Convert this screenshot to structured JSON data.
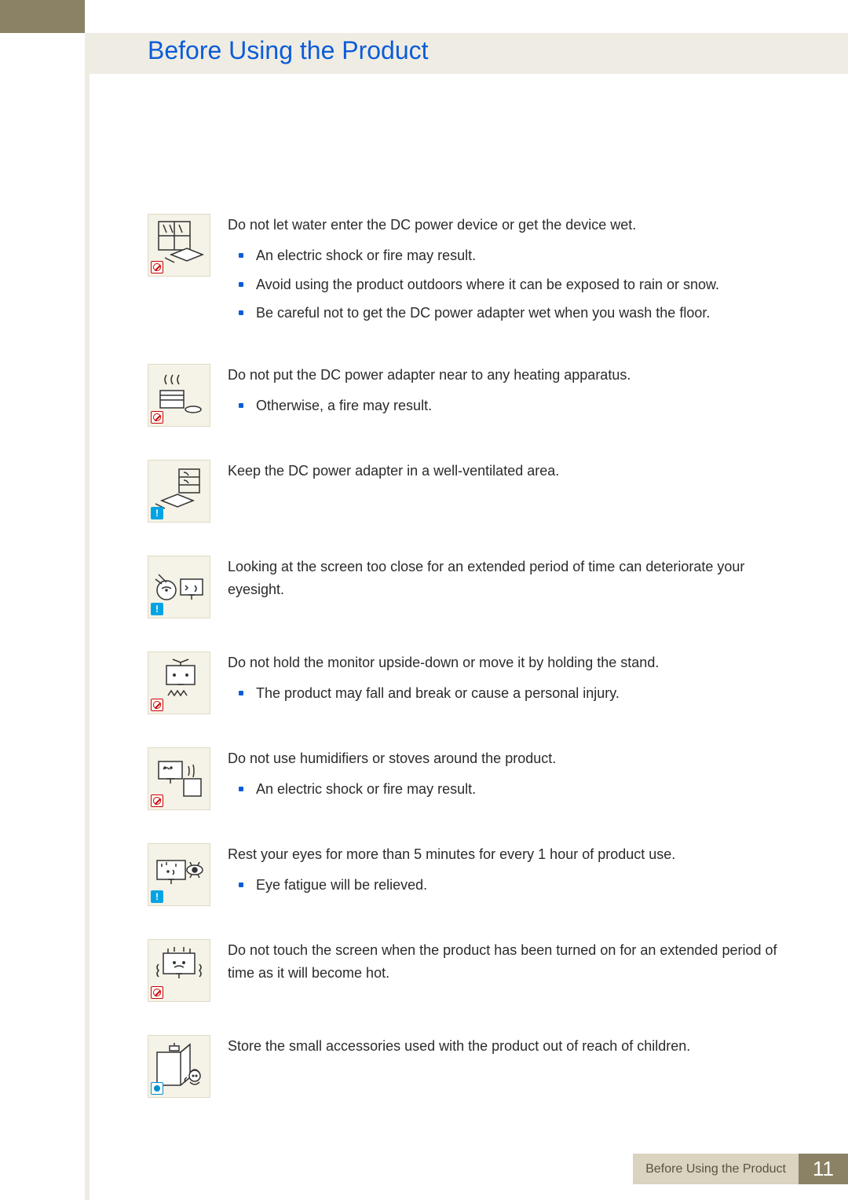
{
  "title": "Before Using the Product",
  "items": [
    {
      "badge": "prohibit",
      "svg": "window_rain",
      "lead": "Do not let water enter the DC power device or get the device wet.",
      "bullets": [
        "An electric shock or fire may result.",
        "Avoid using the product outdoors where it can be exposed to rain or snow.",
        "Be careful not to get the DC power adapter wet when you wash the floor."
      ]
    },
    {
      "badge": "prohibit",
      "svg": "heater",
      "lead": "Do not put the DC power adapter near to any heating apparatus.",
      "bullets": [
        "Otherwise, a fire may result."
      ]
    },
    {
      "badge": "info",
      "svg": "ventilate",
      "lead": "Keep the DC power adapter in a well-ventilated area.",
      "bullets": []
    },
    {
      "badge": "info",
      "svg": "eye_close",
      "lead": "Looking at the screen too close for an extended period of time can deteriorate your eyesight.",
      "bullets": []
    },
    {
      "badge": "prohibit",
      "svg": "upside_down",
      "lead": "Do not hold the monitor upside-down or move it by holding the stand.",
      "bullets": [
        "The product may fall and break or cause a personal injury."
      ]
    },
    {
      "badge": "prohibit",
      "svg": "humidifier",
      "lead": "Do not use humidifiers or stoves around the product.",
      "bullets": [
        "An electric shock or fire may result."
      ]
    },
    {
      "badge": "info",
      "svg": "rest_eyes",
      "lead": "Rest your eyes for more than 5 minutes for every 1 hour of product use.",
      "bullets": [
        "Eye fatigue will be relieved."
      ]
    },
    {
      "badge": "prohibit",
      "svg": "hot_screen",
      "lead": "Do not touch the screen when the product has been turned on for an extended period of time as it will become hot.",
      "bullets": []
    },
    {
      "badge": "dot",
      "svg": "child_reach",
      "lead": "Store the small accessories used with the product out of reach of children.",
      "bullets": []
    }
  ],
  "footer": {
    "label": "Before Using the Product",
    "num": "11"
  },
  "colors": {
    "title": "#0b5cd8",
    "band": "#efece3",
    "tab": "#8b8265",
    "glyph_bg": "#f5f2e7",
    "bullet": "#0b5cd8",
    "footer_label_bg": "#d9d3bf",
    "footer_num_bg": "#8b8265"
  }
}
